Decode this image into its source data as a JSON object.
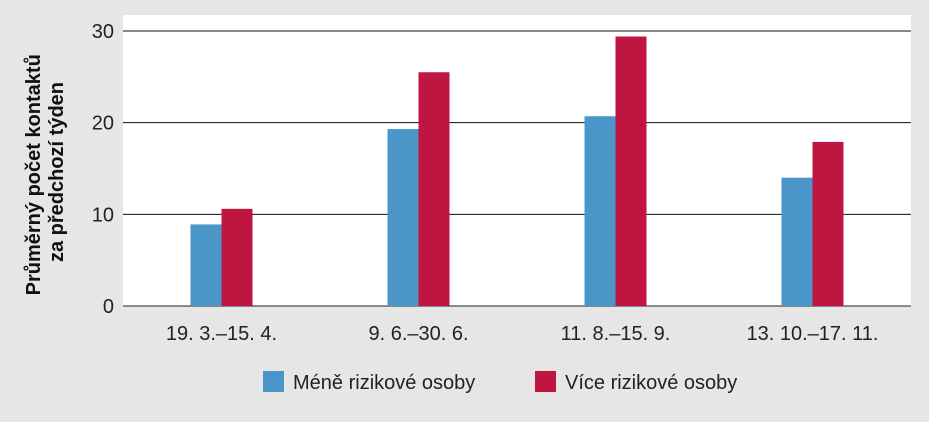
{
  "chart_data": {
    "type": "bar",
    "title": "",
    "xlabel": "",
    "ylabel": [
      "Průměrný počet kontaktů",
      "za předchozí týden"
    ],
    "categories": [
      "19. 3.–15. 4.",
      "9. 6.–30. 6.",
      "11. 8.–15. 9.",
      "13. 10.–17. 11."
    ],
    "ylim": [
      0,
      30
    ],
    "yticks": [
      0,
      10,
      20,
      30
    ],
    "grid": true,
    "legend_position": "bottom",
    "series": [
      {
        "name": "Méně rizikové osoby",
        "color": "#4b96c8",
        "values": [
          8.9,
          19.3,
          20.7,
          14.0
        ]
      },
      {
        "name": "Více rizikové osoby",
        "color": "#be1541",
        "values": [
          10.6,
          25.5,
          29.4,
          17.9
        ]
      }
    ]
  }
}
